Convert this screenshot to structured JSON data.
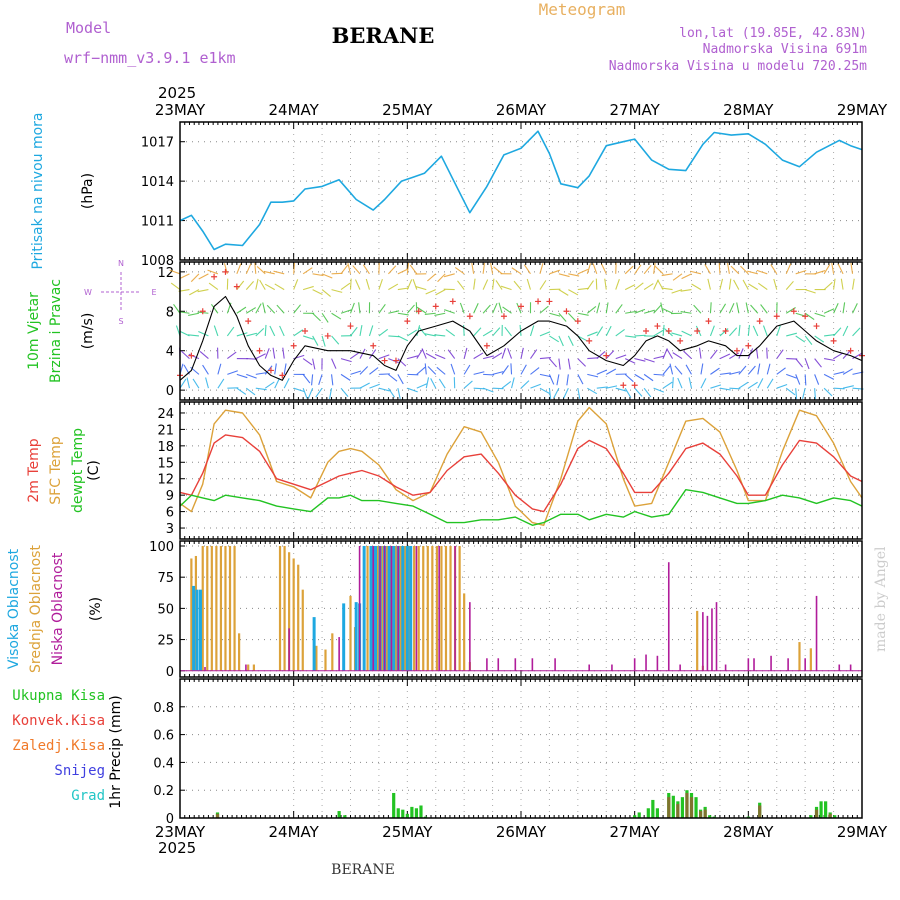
{
  "header": {
    "model_label": "Model",
    "model_name": "wrf−nmm_v3.9.1 e1km",
    "station": "BERANE",
    "product": "Meteogram",
    "coords": "lon,lat (19.85E, 42.83N)",
    "elevation": "Nadmorska Visina 691m",
    "model_elevation": "Nadmorska Visina u modelu 720.25m",
    "footer_station": "BERANE",
    "watermark": "made by Angel"
  },
  "time_axis": {
    "year": "2025",
    "labels": [
      "23MAY",
      "24MAY",
      "25MAY",
      "26MAY",
      "27MAY",
      "28MAY",
      "29MAY"
    ],
    "days": 6,
    "steps_per_day": 24
  },
  "colors": {
    "pressure": "#1ea8e0",
    "wind_speed": "#000000",
    "gust": "#e8403a",
    "temp2m": "#e8403a",
    "sfc_temp": "#dca23a",
    "dewpoint": "#22c322",
    "cloud_high": "#1ea8e0",
    "cloud_mid": "#dca23a",
    "cloud_low": "#b01c9a",
    "precip_total": "#22c322",
    "precip_conv": "#e8403a",
    "precip_frozen": "#f07a2a",
    "snow": "#4040e0",
    "hail": "#22c6c6",
    "title_purple": "#b060d0",
    "title_orange": "#e8b060"
  },
  "chart_data": [
    {
      "id": "pressure",
      "type": "line",
      "ylabel": "Pritisak na nivou mora",
      "unit": "(hPa)",
      "ylim": [
        1008,
        1018.5
      ],
      "yticks": [
        1008,
        1011,
        1014,
        1017
      ],
      "grid": true,
      "series": [
        {
          "x": [
            0,
            0.1,
            0.2,
            0.3,
            0.4,
            0.55,
            0.7,
            0.8,
            0.9,
            1.0,
            1.1,
            1.25,
            1.4,
            1.55,
            1.7,
            1.8,
            1.95,
            2.05,
            2.15,
            2.3,
            2.45,
            2.55,
            2.7,
            2.85,
            3.0,
            3.15,
            3.25,
            3.35,
            3.5,
            3.6,
            3.75,
            3.9,
            4.0,
            4.15,
            4.3,
            4.45,
            4.6,
            4.7,
            4.85,
            5.0,
            5.15,
            5.3,
            5.45,
            5.6,
            5.8,
            5.9,
            6.0
          ],
          "values": [
            1011.0,
            1011.4,
            1010.2,
            1008.8,
            1009.2,
            1009.1,
            1010.7,
            1012.4,
            1012.4,
            1012.5,
            1013.4,
            1013.6,
            1014.1,
            1012.6,
            1011.8,
            1012.6,
            1014.0,
            1014.3,
            1014.6,
            1015.9,
            1013.3,
            1011.6,
            1013.6,
            1016.0,
            1016.5,
            1017.8,
            1016.1,
            1013.8,
            1013.5,
            1014.4,
            1016.7,
            1017.0,
            1017.2,
            1015.6,
            1014.9,
            1014.8,
            1016.8,
            1017.7,
            1017.5,
            1017.6,
            1016.8,
            1015.6,
            1015.1,
            1016.2,
            1017.1,
            1016.7,
            1016.4
          ]
        }
      ]
    },
    {
      "id": "wind",
      "type": "line",
      "ylabel": "10m Vjetar Brzina i Pravac",
      "unit": "(m/s)",
      "ylim": [
        -1,
        13
      ],
      "yticks": [
        0,
        4,
        8,
        12
      ],
      "grid": true,
      "compass": {
        "n": "N",
        "s": "S",
        "e": "E",
        "w": "W"
      },
      "series": [
        {
          "name": "speed",
          "x": [
            0,
            0.1,
            0.2,
            0.3,
            0.4,
            0.5,
            0.6,
            0.7,
            0.8,
            0.9,
            1.0,
            1.1,
            1.3,
            1.5,
            1.7,
            1.8,
            1.9,
            2.0,
            2.1,
            2.25,
            2.4,
            2.55,
            2.7,
            2.85,
            3.0,
            3.15,
            3.25,
            3.4,
            3.5,
            3.6,
            3.75,
            3.9,
            4.0,
            4.1,
            4.2,
            4.3,
            4.4,
            4.55,
            4.65,
            4.8,
            4.9,
            5.0,
            5.1,
            5.25,
            5.4,
            5.5,
            5.6,
            5.75,
            5.9,
            6.0
          ],
          "values": [
            1.0,
            2.0,
            5.0,
            8.5,
            9.5,
            7.5,
            4.5,
            2.5,
            1.5,
            1.0,
            3.0,
            4.5,
            4.0,
            4.0,
            3.5,
            2.5,
            2.0,
            4.5,
            6.0,
            6.5,
            7.0,
            6.0,
            3.5,
            4.5,
            6.0,
            7.0,
            7.0,
            6.5,
            5.5,
            4.0,
            3.0,
            2.5,
            3.5,
            5.0,
            5.5,
            5.0,
            4.0,
            4.5,
            5.0,
            4.5,
            3.5,
            3.5,
            4.5,
            6.5,
            7.0,
            6.0,
            5.0,
            4.0,
            3.5,
            3.0
          ]
        },
        {
          "name": "gust",
          "x": [
            0,
            0.1,
            0.2,
            0.3,
            0.4,
            0.5,
            0.6,
            0.7,
            0.8,
            0.9,
            1.0,
            1.1,
            1.3,
            1.5,
            1.7,
            1.8,
            1.9,
            2.0,
            2.1,
            2.25,
            2.4,
            2.55,
            2.7,
            2.85,
            3.0,
            3.15,
            3.25,
            3.4,
            3.5,
            3.6,
            3.75,
            3.9,
            4.0,
            4.1,
            4.2,
            4.3,
            4.4,
            4.55,
            4.65,
            4.8,
            4.9,
            5.0,
            5.1,
            5.25,
            5.4,
            5.5,
            5.6,
            5.75,
            5.9,
            6.0
          ],
          "values": [
            1.5,
            3.5,
            8.0,
            11.5,
            12.0,
            10.5,
            7.0,
            4.0,
            2.0,
            1.5,
            4.5,
            6.0,
            5.5,
            6.5,
            4.5,
            3.0,
            3.0,
            7.0,
            8.0,
            8.5,
            9.0,
            7.5,
            4.5,
            7.5,
            8.5,
            9.0,
            9.0,
            8.0,
            7.0,
            5.0,
            3.5,
            0.5,
            0.5,
            6.0,
            6.5,
            6.0,
            5.0,
            6.0,
            7.0,
            6.0,
            4.0,
            4.5,
            7.0,
            7.5,
            8.0,
            7.5,
            6.5,
            5.0,
            4.0,
            3.5
          ]
        }
      ]
    },
    {
      "id": "temperature",
      "type": "line",
      "ylabel": [
        "2m Temp",
        "SFC Temp",
        "dewpt Temp"
      ],
      "unit": "(C)",
      "ylim": [
        1,
        26
      ],
      "yticks": [
        3,
        6,
        9,
        12,
        15,
        18,
        21,
        24
      ],
      "grid": true,
      "series": [
        {
          "name": "2m Temp",
          "x": [
            0,
            0.1,
            0.2,
            0.3,
            0.4,
            0.55,
            0.7,
            0.85,
            1.0,
            1.15,
            1.3,
            1.4,
            1.5,
            1.6,
            1.75,
            1.9,
            2.05,
            2.2,
            2.35,
            2.5,
            2.65,
            2.8,
            2.95,
            3.1,
            3.2,
            3.35,
            3.5,
            3.6,
            3.75,
            3.9,
            4.0,
            4.15,
            4.3,
            4.45,
            4.6,
            4.75,
            4.9,
            5.0,
            5.15,
            5.3,
            5.45,
            5.6,
            5.75,
            5.9,
            6.0
          ],
          "values": [
            9.5,
            9.0,
            13.0,
            18.5,
            20.0,
            19.5,
            17.0,
            12.0,
            11.0,
            10.0,
            11.5,
            12.5,
            13.0,
            13.5,
            12.5,
            10.5,
            9.0,
            9.5,
            13.5,
            16.0,
            16.5,
            13.0,
            9.0,
            6.5,
            6.0,
            11.0,
            17.5,
            19.0,
            17.5,
            13.0,
            9.5,
            9.5,
            13.0,
            17.5,
            18.5,
            16.5,
            12.5,
            9.0,
            9.0,
            14.5,
            19.0,
            18.5,
            16.0,
            12.5,
            11.5
          ]
        },
        {
          "name": "SFC Temp",
          "x": [
            0,
            0.1,
            0.2,
            0.3,
            0.4,
            0.55,
            0.7,
            0.85,
            1.0,
            1.15,
            1.3,
            1.4,
            1.5,
            1.6,
            1.75,
            1.9,
            2.05,
            2.2,
            2.35,
            2.5,
            2.65,
            2.8,
            2.95,
            3.1,
            3.2,
            3.35,
            3.5,
            3.6,
            3.75,
            3.9,
            4.0,
            4.15,
            4.3,
            4.45,
            4.6,
            4.75,
            4.9,
            5.0,
            5.15,
            5.3,
            5.45,
            5.6,
            5.75,
            5.9,
            6.0
          ],
          "values": [
            7.5,
            6.0,
            11.0,
            22.0,
            24.5,
            24.0,
            20.0,
            11.5,
            10.5,
            8.5,
            15.0,
            17.0,
            17.5,
            17.0,
            14.5,
            10.0,
            8.0,
            9.5,
            16.5,
            21.5,
            20.5,
            15.0,
            7.0,
            4.0,
            3.5,
            12.0,
            22.5,
            25.0,
            22.0,
            12.0,
            7.0,
            7.5,
            15.0,
            22.5,
            23.0,
            20.5,
            13.5,
            8.0,
            8.0,
            17.0,
            24.5,
            23.5,
            18.5,
            11.5,
            8.5
          ]
        },
        {
          "name": "dewpt Temp",
          "x": [
            0,
            0.1,
            0.2,
            0.3,
            0.4,
            0.55,
            0.7,
            0.85,
            1.0,
            1.15,
            1.3,
            1.4,
            1.5,
            1.6,
            1.75,
            1.9,
            2.05,
            2.2,
            2.35,
            2.5,
            2.65,
            2.8,
            2.95,
            3.1,
            3.2,
            3.35,
            3.5,
            3.6,
            3.75,
            3.9,
            4.0,
            4.15,
            4.3,
            4.45,
            4.6,
            4.75,
            4.9,
            5.0,
            5.15,
            5.3,
            5.45,
            5.6,
            5.75,
            5.9,
            6.0
          ],
          "values": [
            7.0,
            9.0,
            8.5,
            8.0,
            9.0,
            8.5,
            8.0,
            7.0,
            6.5,
            6.0,
            8.5,
            8.5,
            9.0,
            8.0,
            8.0,
            7.5,
            7.0,
            5.5,
            4.0,
            4.0,
            4.5,
            4.5,
            5.0,
            3.5,
            4.0,
            5.5,
            5.5,
            4.5,
            5.5,
            5.0,
            6.0,
            5.0,
            5.5,
            10.0,
            9.5,
            8.5,
            7.5,
            7.5,
            8.0,
            9.0,
            8.5,
            7.5,
            8.5,
            8.0,
            7.0
          ]
        }
      ]
    },
    {
      "id": "clouds",
      "type": "bar",
      "ylabel": [
        "Visoka Oblacnost",
        "Srednja Oblacnost",
        "Niska Oblacnost"
      ],
      "unit": "(%)",
      "ylim": [
        -5,
        104
      ],
      "yticks": [
        0,
        25,
        50,
        75,
        100
      ],
      "grid": true,
      "series": [
        {
          "name": "Visoka Oblacnost",
          "x": [
            0.12,
            0.15,
            0.18,
            1.18,
            1.44,
            1.55,
            1.58,
            1.62,
            1.68,
            1.72,
            1.76,
            1.8,
            1.84,
            1.88,
            1.92,
            1.96,
            2.0,
            2.03
          ],
          "values": [
            68,
            65,
            65,
            43,
            54,
            55,
            54,
            100,
            100,
            100,
            100,
            100,
            100,
            100,
            100,
            100,
            100,
            100
          ]
        },
        {
          "name": "Srednja Oblacnost",
          "x": [
            0.1,
            0.14,
            0.2,
            0.24,
            0.28,
            0.32,
            0.36,
            0.4,
            0.44,
            0.48,
            0.52,
            0.6,
            0.65,
            0.88,
            0.92,
            0.96,
            1.0,
            1.04,
            1.08,
            1.2,
            1.28,
            1.34,
            1.5,
            1.54,
            1.65,
            1.7,
            1.74,
            1.78,
            1.82,
            1.86,
            1.9,
            1.94,
            1.98,
            2.02,
            2.06,
            2.1,
            2.14,
            2.18,
            2.22,
            2.26,
            2.3,
            2.34,
            2.38,
            2.42,
            2.46,
            2.5,
            2.55,
            4.55,
            4.6,
            5.45,
            5.55
          ],
          "values": [
            90,
            92,
            100,
            100,
            100,
            100,
            100,
            100,
            100,
            100,
            30,
            5,
            5,
            100,
            100,
            95,
            90,
            85,
            65,
            20,
            17,
            30,
            60,
            35,
            100,
            100,
            100,
            100,
            100,
            100,
            100,
            100,
            100,
            100,
            100,
            100,
            100,
            100,
            100,
            100,
            100,
            100,
            100,
            100,
            100,
            62,
            7,
            48,
            4,
            23,
            18
          ]
        },
        {
          "name": "Niska Oblacnost",
          "x": [
            0.22,
            0.58,
            0.96,
            1.4,
            1.58,
            1.7,
            1.76,
            1.8,
            1.86,
            1.92,
            2.08,
            2.28,
            2.42,
            2.55,
            2.7,
            2.8,
            2.95,
            3.1,
            3.3,
            3.6,
            3.8,
            4.0,
            4.1,
            4.2,
            4.3,
            4.4,
            4.6,
            4.64,
            4.68,
            4.72,
            4.8,
            5.0,
            5.05,
            5.2,
            5.35,
            5.5,
            5.6,
            5.8,
            5.9
          ],
          "values": [
            3,
            5,
            34,
            27,
            100,
            100,
            100,
            100,
            100,
            100,
            100,
            100,
            100,
            55,
            10,
            10,
            10,
            10,
            10,
            5,
            5,
            10,
            13,
            12,
            87,
            5,
            47,
            44,
            50,
            55,
            5,
            10,
            10,
            12,
            10,
            10,
            60,
            5,
            5
          ]
        }
      ]
    },
    {
      "id": "precipitation",
      "type": "bar",
      "ylabel": [
        "Ukupna Kisa",
        "Konvek.Kisa",
        "Zaledj.Kisa",
        "Snijeg",
        "Grad"
      ],
      "ylabel2": "1hr Precip (mm)",
      "ylim": [
        0,
        1.0
      ],
      "yticks": [
        0,
        0.2,
        0.4,
        0.6,
        0.8
      ],
      "grid": true,
      "series": [
        {
          "name": "Ukupna Kisa",
          "x": [
            0.33,
            1.4,
            1.45,
            1.88,
            1.92,
            1.96,
            2.0,
            2.04,
            2.08,
            2.12,
            2.16,
            4.0,
            4.04,
            4.12,
            4.16,
            4.2,
            4.3,
            4.34,
            4.38,
            4.42,
            4.46,
            4.5,
            4.54,
            4.58,
            4.62,
            4.66,
            4.7,
            5.0,
            5.1,
            5.55,
            5.6,
            5.64,
            5.68,
            5.72,
            5.76
          ],
          "values": [
            0.04,
            0.05,
            0.02,
            0.18,
            0.07,
            0.06,
            0.03,
            0.08,
            0.07,
            0.09,
            0.01,
            0.02,
            0.04,
            0.07,
            0.13,
            0.07,
            0.18,
            0.16,
            0.12,
            0.15,
            0.2,
            0.18,
            0.15,
            0.06,
            0.08,
            0.02,
            0.01,
            0.01,
            0.11,
            0.02,
            0.08,
            0.12,
            0.12,
            0.04,
            0.02
          ]
        },
        {
          "name": "Konvek.Kisa",
          "x": [
            0.33,
            4.3,
            4.38,
            4.46,
            4.5,
            4.58,
            4.62,
            5.1,
            5.6,
            5.72
          ],
          "values": [
            0.03,
            0.15,
            0.1,
            0.18,
            0.15,
            0.05,
            0.06,
            0.09,
            0.06,
            0.03
          ]
        }
      ]
    }
  ]
}
